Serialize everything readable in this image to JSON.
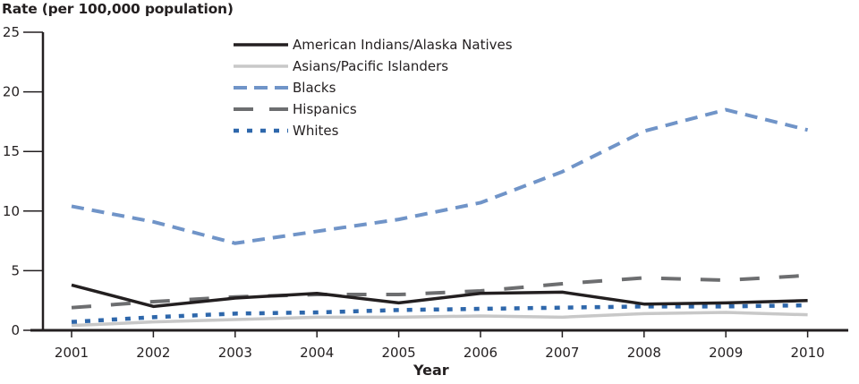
{
  "chart_data": {
    "type": "line",
    "title": "Rate (per 100,000 population)",
    "xlabel": "Year",
    "ylabel": "Rate (per 100,000 population)",
    "ylim": [
      0,
      25
    ],
    "yticks": [
      0,
      5,
      10,
      15,
      20,
      25
    ],
    "grid": false,
    "legend_position": "top-center",
    "x": [
      "2001",
      "2002",
      "2003",
      "2004",
      "2005",
      "2006",
      "2007",
      "2008",
      "2009",
      "2010"
    ],
    "series": [
      {
        "name": "American Indians/Alaska Natives",
        "color": "#231f20",
        "style": "solid",
        "width": 3.5,
        "values": [
          3.8,
          2.0,
          2.7,
          3.1,
          2.3,
          3.1,
          3.2,
          2.2,
          2.3,
          2.5
        ]
      },
      {
        "name": "Asians/Pacific Islanders",
        "color": "#c8c8c8",
        "style": "solid",
        "width": 3.5,
        "values": [
          0.4,
          0.7,
          0.9,
          1.1,
          1.1,
          1.2,
          1.1,
          1.4,
          1.5,
          1.3
        ]
      },
      {
        "name": "Blacks",
        "color": "#7094c8",
        "style": "dashed",
        "width": 4,
        "values": [
          10.4,
          9.1,
          7.3,
          8.3,
          9.3,
          10.7,
          13.3,
          16.7,
          18.5,
          16.8
        ]
      },
      {
        "name": "Hispanics",
        "color": "#6d6e70",
        "style": "longdash",
        "width": 4,
        "values": [
          1.9,
          2.4,
          2.8,
          3.0,
          3.0,
          3.3,
          3.9,
          4.4,
          4.2,
          4.6
        ]
      },
      {
        "name": "Whites",
        "color": "#2e67ab",
        "style": "dotted",
        "width": 4.5,
        "values": [
          0.7,
          1.1,
          1.4,
          1.5,
          1.7,
          1.8,
          1.9,
          2.0,
          2.0,
          2.1
        ]
      }
    ]
  }
}
